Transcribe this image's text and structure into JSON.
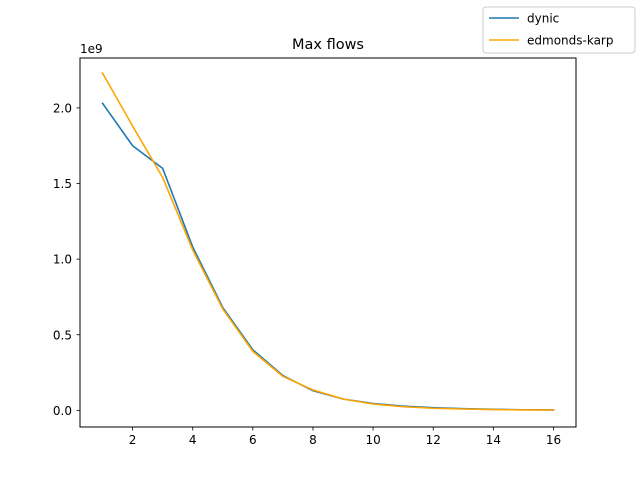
{
  "chart_data": {
    "type": "line",
    "title": "Max flows",
    "xlabel": "",
    "ylabel": "",
    "y_offset_label": "1e9",
    "xlim": [
      0.25,
      16.75
    ],
    "ylim": [
      -0.11,
      2.33
    ],
    "x_ticks": [
      2,
      4,
      6,
      8,
      10,
      12,
      14,
      16
    ],
    "y_ticks": [
      0.0,
      0.5,
      1.0,
      1.5,
      2.0
    ],
    "y_tick_labels": [
      "0.0",
      "0.5",
      "1.0",
      "1.5",
      "2.0"
    ],
    "grid": false,
    "legend_position": "top-right",
    "x": [
      1,
      2,
      3,
      4,
      5,
      6,
      7,
      8,
      9,
      10,
      11,
      12,
      13,
      14,
      15,
      16
    ],
    "series": [
      {
        "name": "dynic",
        "color": "#1f77b4",
        "values": [
          2.03,
          1.75,
          1.6,
          1.08,
          0.68,
          0.4,
          0.23,
          0.13,
          0.075,
          0.045,
          0.028,
          0.018,
          0.011,
          0.007,
          0.004,
          0.003
        ]
      },
      {
        "name": "edmonds-karp",
        "color": "#ffa500",
        "values": [
          2.23,
          1.88,
          1.54,
          1.06,
          0.67,
          0.39,
          0.225,
          0.135,
          0.075,
          0.042,
          0.024,
          0.014,
          0.009,
          0.005,
          0.003,
          0.002
        ]
      }
    ]
  }
}
